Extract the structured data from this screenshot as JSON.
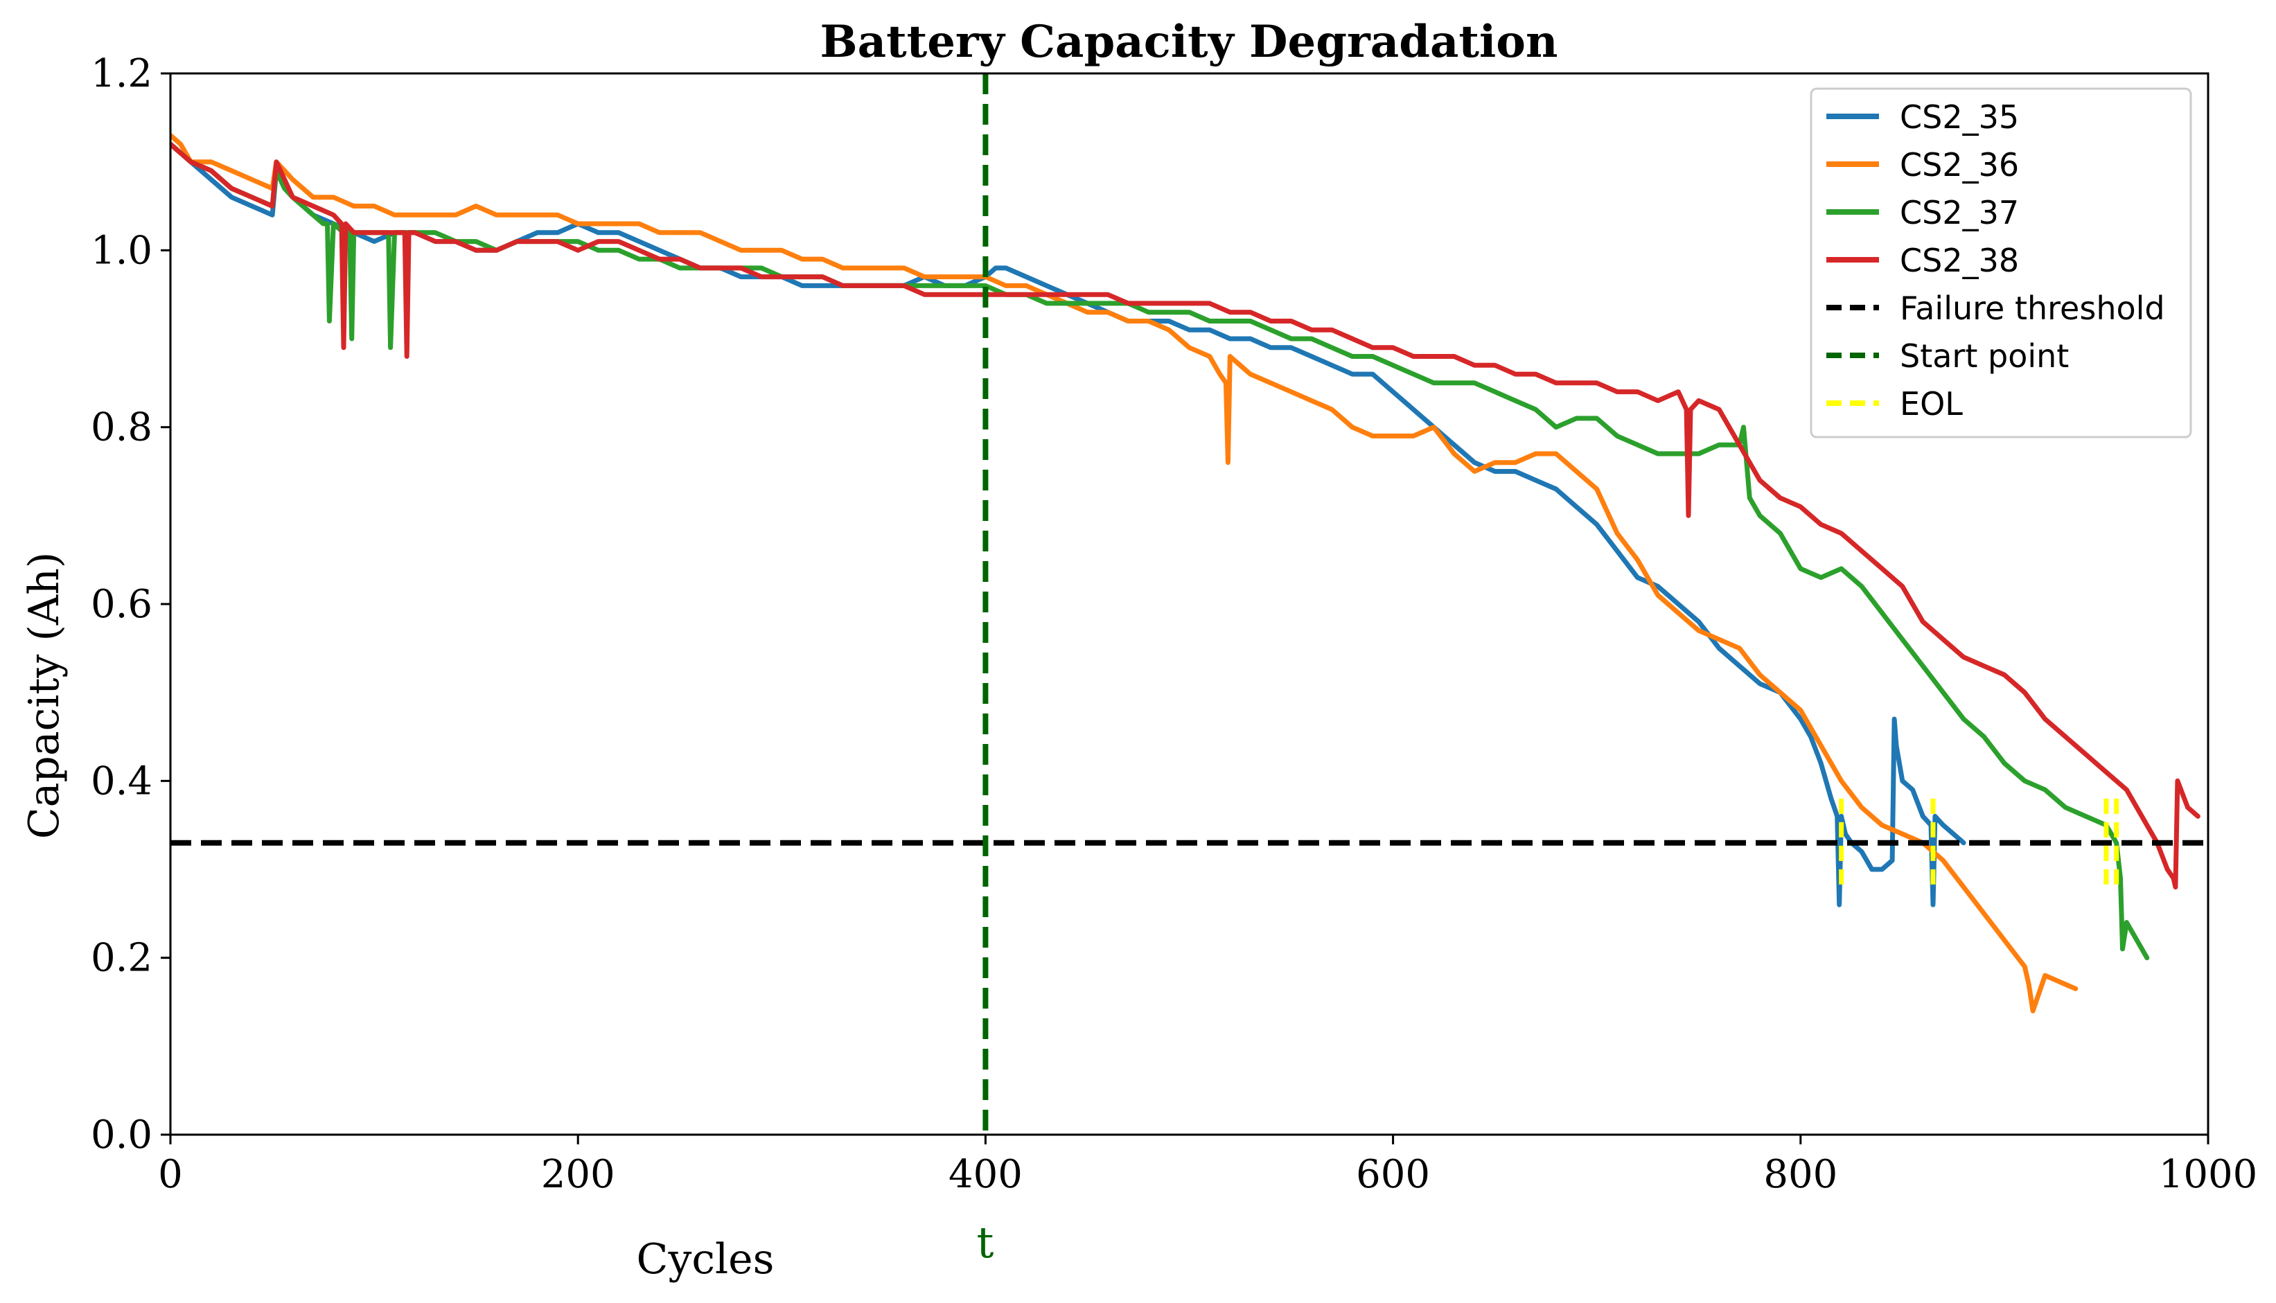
{
  "chart_data": {
    "type": "line",
    "title": "Battery Capacity Degradation",
    "xlabel": "Cycles",
    "ylabel": "Capacity (Ah)",
    "xlim": [
      0,
      1000
    ],
    "ylim": [
      0.0,
      1.2
    ],
    "xticks": [
      "0",
      "200",
      "400",
      "600",
      "800",
      "1000"
    ],
    "yticks": [
      "0.0",
      "0.2",
      "0.4",
      "0.6",
      "0.8",
      "1.0",
      "1.2"
    ],
    "grid": false,
    "legend_position": "top-right",
    "series": [
      {
        "name": "CS2_35",
        "color": "#1f77b4",
        "x": [
          0,
          5,
          10,
          20,
          30,
          40,
          50,
          52,
          56,
          60,
          70,
          80,
          90,
          100,
          110,
          120,
          130,
          140,
          150,
          160,
          170,
          180,
          190,
          200,
          210,
          220,
          230,
          240,
          250,
          260,
          270,
          280,
          290,
          300,
          310,
          320,
          330,
          340,
          350,
          360,
          370,
          380,
          390,
          400,
          405,
          410,
          420,
          430,
          440,
          450,
          460,
          470,
          480,
          490,
          500,
          510,
          520,
          530,
          540,
          550,
          560,
          570,
          580,
          590,
          600,
          610,
          620,
          630,
          640,
          650,
          660,
          670,
          680,
          690,
          700,
          710,
          720,
          730,
          740,
          750,
          760,
          770,
          780,
          790,
          800,
          805,
          810,
          815,
          818,
          819,
          820,
          822,
          825,
          830,
          835,
          840,
          845,
          846,
          847,
          850,
          855,
          860,
          864,
          865,
          866,
          870,
          875,
          880
        ],
        "y": [
          1.12,
          1.11,
          1.1,
          1.08,
          1.06,
          1.05,
          1.04,
          1.09,
          1.07,
          1.06,
          1.04,
          1.03,
          1.02,
          1.01,
          1.02,
          1.02,
          1.01,
          1.01,
          1.0,
          1.0,
          1.01,
          1.02,
          1.02,
          1.03,
          1.02,
          1.02,
          1.01,
          1.0,
          0.99,
          0.98,
          0.98,
          0.97,
          0.97,
          0.97,
          0.96,
          0.96,
          0.96,
          0.96,
          0.96,
          0.96,
          0.97,
          0.96,
          0.96,
          0.97,
          0.98,
          0.98,
          0.97,
          0.96,
          0.95,
          0.94,
          0.93,
          0.92,
          0.92,
          0.92,
          0.91,
          0.91,
          0.9,
          0.9,
          0.89,
          0.89,
          0.88,
          0.87,
          0.86,
          0.86,
          0.84,
          0.82,
          0.8,
          0.78,
          0.76,
          0.75,
          0.75,
          0.74,
          0.73,
          0.71,
          0.69,
          0.66,
          0.63,
          0.62,
          0.6,
          0.58,
          0.55,
          0.53,
          0.51,
          0.5,
          0.47,
          0.45,
          0.42,
          0.38,
          0.36,
          0.26,
          0.36,
          0.34,
          0.33,
          0.32,
          0.3,
          0.3,
          0.31,
          0.47,
          0.44,
          0.4,
          0.39,
          0.36,
          0.35,
          0.26,
          0.36,
          0.35,
          0.34,
          0.33
        ]
      },
      {
        "name": "CS2_36",
        "color": "#ff7f0e",
        "x": [
          0,
          5,
          10,
          20,
          30,
          40,
          50,
          52,
          56,
          60,
          70,
          80,
          90,
          100,
          110,
          120,
          130,
          140,
          150,
          160,
          170,
          180,
          190,
          200,
          210,
          220,
          230,
          240,
          250,
          260,
          270,
          280,
          290,
          300,
          310,
          320,
          330,
          340,
          350,
          360,
          370,
          380,
          390,
          400,
          410,
          420,
          430,
          440,
          450,
          460,
          470,
          480,
          490,
          500,
          510,
          515,
          518,
          519,
          520,
          525,
          530,
          540,
          550,
          560,
          570,
          580,
          590,
          600,
          610,
          620,
          630,
          640,
          650,
          660,
          670,
          680,
          690,
          700,
          710,
          720,
          730,
          740,
          750,
          760,
          770,
          780,
          790,
          800,
          810,
          820,
          830,
          840,
          850,
          860,
          870,
          880,
          890,
          900,
          910,
          912,
          914,
          920,
          930,
          935
        ],
        "y": [
          1.13,
          1.12,
          1.1,
          1.1,
          1.09,
          1.08,
          1.07,
          1.1,
          1.09,
          1.08,
          1.06,
          1.06,
          1.05,
          1.05,
          1.04,
          1.04,
          1.04,
          1.04,
          1.05,
          1.04,
          1.04,
          1.04,
          1.04,
          1.03,
          1.03,
          1.03,
          1.03,
          1.02,
          1.02,
          1.02,
          1.01,
          1.0,
          1.0,
          1.0,
          0.99,
          0.99,
          0.98,
          0.98,
          0.98,
          0.98,
          0.97,
          0.97,
          0.97,
          0.97,
          0.96,
          0.96,
          0.95,
          0.94,
          0.93,
          0.93,
          0.92,
          0.92,
          0.91,
          0.89,
          0.88,
          0.86,
          0.85,
          0.76,
          0.88,
          0.87,
          0.86,
          0.85,
          0.84,
          0.83,
          0.82,
          0.8,
          0.79,
          0.79,
          0.79,
          0.8,
          0.77,
          0.75,
          0.76,
          0.76,
          0.77,
          0.77,
          0.75,
          0.73,
          0.68,
          0.65,
          0.61,
          0.59,
          0.57,
          0.56,
          0.55,
          0.52,
          0.5,
          0.48,
          0.44,
          0.4,
          0.37,
          0.35,
          0.34,
          0.33,
          0.31,
          0.28,
          0.25,
          0.22,
          0.19,
          0.17,
          0.14,
          0.18,
          0.17,
          0.165
        ]
      },
      {
        "name": "CS2_37",
        "color": "#2ca02c",
        "x": [
          0,
          5,
          10,
          20,
          30,
          40,
          50,
          52,
          56,
          60,
          70,
          75,
          77,
          78,
          80,
          85,
          88,
          89,
          90,
          95,
          100,
          105,
          107,
          108,
          110,
          120,
          130,
          140,
          150,
          160,
          170,
          180,
          190,
          200,
          210,
          220,
          230,
          240,
          250,
          260,
          270,
          280,
          290,
          300,
          310,
          320,
          330,
          340,
          350,
          360,
          370,
          380,
          390,
          400,
          410,
          420,
          430,
          440,
          450,
          460,
          470,
          480,
          490,
          500,
          510,
          520,
          530,
          540,
          550,
          560,
          570,
          580,
          590,
          600,
          610,
          620,
          630,
          640,
          650,
          660,
          670,
          680,
          690,
          700,
          710,
          720,
          730,
          740,
          750,
          760,
          770,
          772,
          775,
          780,
          790,
          800,
          810,
          820,
          830,
          840,
          850,
          860,
          870,
          880,
          890,
          900,
          910,
          920,
          930,
          940,
          950,
          955,
          957,
          958,
          960,
          965,
          970
        ],
        "y": [
          1.12,
          1.11,
          1.1,
          1.09,
          1.07,
          1.06,
          1.05,
          1.09,
          1.07,
          1.06,
          1.04,
          1.03,
          1.03,
          0.92,
          1.03,
          1.02,
          1.02,
          0.9,
          1.02,
          1.02,
          1.02,
          1.02,
          1.02,
          0.89,
          1.02,
          1.02,
          1.02,
          1.01,
          1.01,
          1.0,
          1.01,
          1.01,
          1.01,
          1.01,
          1.0,
          1.0,
          0.99,
          0.99,
          0.98,
          0.98,
          0.98,
          0.98,
          0.98,
          0.97,
          0.97,
          0.97,
          0.96,
          0.96,
          0.96,
          0.96,
          0.96,
          0.96,
          0.96,
          0.96,
          0.95,
          0.95,
          0.94,
          0.94,
          0.94,
          0.94,
          0.94,
          0.93,
          0.93,
          0.93,
          0.92,
          0.92,
          0.92,
          0.91,
          0.9,
          0.9,
          0.89,
          0.88,
          0.88,
          0.87,
          0.86,
          0.85,
          0.85,
          0.85,
          0.84,
          0.83,
          0.82,
          0.8,
          0.81,
          0.81,
          0.79,
          0.78,
          0.77,
          0.77,
          0.77,
          0.78,
          0.78,
          0.8,
          0.72,
          0.7,
          0.68,
          0.64,
          0.63,
          0.64,
          0.62,
          0.59,
          0.56,
          0.53,
          0.5,
          0.47,
          0.45,
          0.42,
          0.4,
          0.39,
          0.37,
          0.36,
          0.35,
          0.33,
          0.29,
          0.21,
          0.24,
          0.22,
          0.2
        ]
      },
      {
        "name": "CS2_38",
        "color": "#d62728",
        "x": [
          0,
          5,
          10,
          20,
          30,
          40,
          50,
          52,
          56,
          60,
          70,
          80,
          84,
          85,
          86,
          90,
          100,
          110,
          115,
          116,
          117,
          120,
          130,
          140,
          150,
          160,
          170,
          180,
          190,
          200,
          210,
          220,
          230,
          240,
          250,
          260,
          270,
          280,
          290,
          300,
          310,
          320,
          330,
          340,
          350,
          360,
          370,
          380,
          390,
          400,
          410,
          420,
          430,
          440,
          450,
          460,
          470,
          480,
          490,
          500,
          510,
          520,
          530,
          540,
          550,
          560,
          570,
          580,
          590,
          600,
          610,
          620,
          630,
          640,
          650,
          660,
          670,
          680,
          690,
          700,
          710,
          720,
          730,
          740,
          744,
          745,
          746,
          750,
          760,
          770,
          780,
          790,
          800,
          810,
          820,
          830,
          840,
          850,
          860,
          870,
          880,
          890,
          900,
          910,
          920,
          930,
          940,
          950,
          960,
          970,
          975,
          980,
          983,
          984,
          985,
          990,
          995
        ],
        "y": [
          1.12,
          1.11,
          1.1,
          1.09,
          1.07,
          1.06,
          1.05,
          1.1,
          1.08,
          1.06,
          1.05,
          1.04,
          1.03,
          0.89,
          1.03,
          1.02,
          1.02,
          1.02,
          1.02,
          0.88,
          1.02,
          1.02,
          1.01,
          1.01,
          1.0,
          1.0,
          1.01,
          1.01,
          1.01,
          1.0,
          1.01,
          1.01,
          1.0,
          0.99,
          0.99,
          0.98,
          0.98,
          0.98,
          0.97,
          0.97,
          0.97,
          0.97,
          0.96,
          0.96,
          0.96,
          0.96,
          0.95,
          0.95,
          0.95,
          0.95,
          0.95,
          0.95,
          0.95,
          0.95,
          0.95,
          0.95,
          0.94,
          0.94,
          0.94,
          0.94,
          0.94,
          0.93,
          0.93,
          0.92,
          0.92,
          0.91,
          0.91,
          0.9,
          0.89,
          0.89,
          0.88,
          0.88,
          0.88,
          0.87,
          0.87,
          0.86,
          0.86,
          0.85,
          0.85,
          0.85,
          0.84,
          0.84,
          0.83,
          0.84,
          0.82,
          0.7,
          0.82,
          0.83,
          0.82,
          0.78,
          0.74,
          0.72,
          0.71,
          0.69,
          0.68,
          0.66,
          0.64,
          0.62,
          0.58,
          0.56,
          0.54,
          0.53,
          0.52,
          0.5,
          0.47,
          0.45,
          0.43,
          0.41,
          0.39,
          0.35,
          0.33,
          0.3,
          0.29,
          0.28,
          0.4,
          0.37,
          0.36
        ]
      }
    ],
    "reference_lines": {
      "failure_threshold": {
        "label": "Failure threshold",
        "y": 0.33,
        "color": "#000000",
        "style": "dashed"
      },
      "start_point": {
        "label": "Start point",
        "x": 400,
        "marker_label": "t",
        "color": "#006400",
        "style": "dashed"
      },
      "eol": {
        "label": "EOL",
        "color": "#ffff00",
        "style": "dashed",
        "x": [
          820,
          865,
          950,
          955
        ],
        "y_range": [
          0.28,
          0.38
        ]
      }
    },
    "legend": [
      "CS2_35",
      "CS2_36",
      "CS2_37",
      "CS2_38",
      "Failure threshold",
      "Start point",
      "EOL"
    ]
  }
}
